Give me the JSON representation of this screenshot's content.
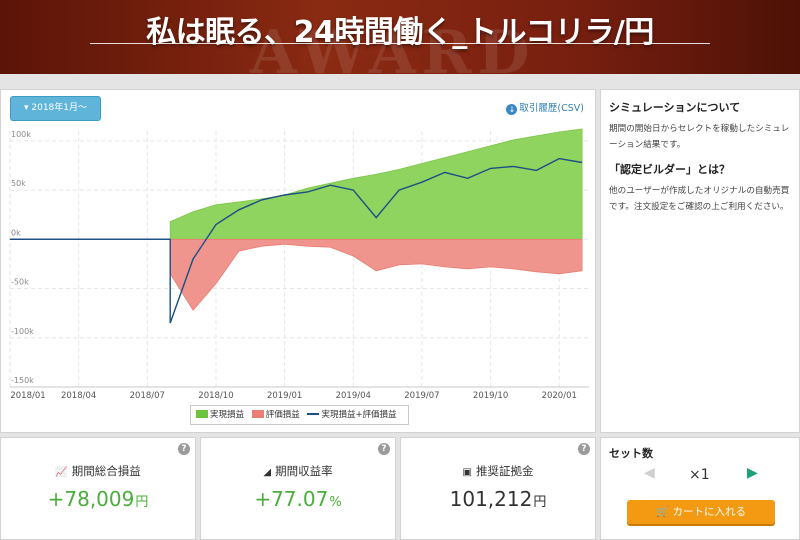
{
  "banner": {
    "title": "私は眠る、24時間働く_トルコリラ/円",
    "watermark": "AWARD"
  },
  "chart_panel": {
    "period_button": "2018年1月～",
    "csv_link": "取引履歴(CSV)",
    "legend": [
      "実現損益",
      "評価損益",
      "実現損益+評価損益"
    ]
  },
  "chart_data": {
    "type": "area",
    "x": [
      "2018/01",
      "2018/04",
      "2018/07",
      "2018/10",
      "2019/01",
      "2019/04",
      "2019/07",
      "2019/10",
      "2020/01"
    ],
    "x_ticks": [
      "2018/01",
      "2018/04",
      "2018/07",
      "2018/10",
      "2019/01",
      "2019/04",
      "2019/07",
      "2019/10",
      "2020/01"
    ],
    "y_ticks": [
      "100k",
      "50k",
      "0k",
      "-50k",
      "-100k",
      "-150k"
    ],
    "ylim": [
      -150000,
      110000
    ],
    "grid": true,
    "legend_position": "bottom",
    "series": [
      {
        "name": "実現損益",
        "color": "#8fd45f",
        "points": [
          [
            "2018/01",
            0
          ],
          [
            "2018/08",
            0
          ],
          [
            "2018/08",
            18000
          ],
          [
            "2018/09",
            28000
          ],
          [
            "2018/10",
            35000
          ],
          [
            "2018/11",
            38000
          ],
          [
            "2018/12",
            41000
          ],
          [
            "2019/01",
            45000
          ],
          [
            "2019/02",
            52000
          ],
          [
            "2019/03",
            57000
          ],
          [
            "2019/04",
            62000
          ],
          [
            "2019/05",
            66000
          ],
          [
            "2019/06",
            71000
          ],
          [
            "2019/07",
            77000
          ],
          [
            "2019/08",
            83000
          ],
          [
            "2019/09",
            89000
          ],
          [
            "2019/10",
            95000
          ],
          [
            "2019/11",
            101000
          ],
          [
            "2019/12",
            105000
          ],
          [
            "2020/01",
            109000
          ],
          [
            "2020/02",
            112000
          ]
        ]
      },
      {
        "name": "評価損益",
        "color": "#f0958d",
        "points": [
          [
            "2018/01",
            0
          ],
          [
            "2018/08",
            0
          ],
          [
            "2018/08",
            -35000
          ],
          [
            "2018/09",
            -72000
          ],
          [
            "2018/10",
            -45000
          ],
          [
            "2018/11",
            -12000
          ],
          [
            "2018/12",
            -7000
          ],
          [
            "2019/01",
            -5000
          ],
          [
            "2019/02",
            -7000
          ],
          [
            "2019/03",
            -8000
          ],
          [
            "2019/04",
            -17000
          ],
          [
            "2019/05",
            -32000
          ],
          [
            "2019/06",
            -26000
          ],
          [
            "2019/07",
            -25000
          ],
          [
            "2019/08",
            -28000
          ],
          [
            "2019/09",
            -30000
          ],
          [
            "2019/10",
            -28000
          ],
          [
            "2019/11",
            -30000
          ],
          [
            "2019/12",
            -33000
          ],
          [
            "2020/01",
            -35000
          ],
          [
            "2020/02",
            -32000
          ]
        ]
      },
      {
        "name": "実現損益+評価損益",
        "color": "#1c4f86",
        "points": [
          [
            "2018/01",
            0
          ],
          [
            "2018/08",
            0
          ],
          [
            "2018/08",
            -85000
          ],
          [
            "2018/09",
            -20000
          ],
          [
            "2018/10",
            15000
          ],
          [
            "2018/11",
            30000
          ],
          [
            "2018/12",
            40000
          ],
          [
            "2019/01",
            45000
          ],
          [
            "2019/02",
            48000
          ],
          [
            "2019/03",
            55000
          ],
          [
            "2019/04",
            50000
          ],
          [
            "2019/05",
            22000
          ],
          [
            "2019/06",
            50000
          ],
          [
            "2019/07",
            58000
          ],
          [
            "2019/08",
            68000
          ],
          [
            "2019/09",
            62000
          ],
          [
            "2019/10",
            72000
          ],
          [
            "2019/11",
            74000
          ],
          [
            "2019/12",
            70000
          ],
          [
            "2020/01",
            82000
          ],
          [
            "2020/02",
            78000
          ]
        ]
      }
    ]
  },
  "info_panel": {
    "heading1": "シミュレーションについて",
    "text1": "期間の開始日からセレクトを稼動したシミュレーション結果です。",
    "heading2": "「認定ビルダー」とは？",
    "text2": "他のユーザーが作成したオリジナルの自動売買です。注文設定をご確認の上ご利用ください。"
  },
  "stats": {
    "help_glyph": "?",
    "total_profit": {
      "label": "期間総合損益",
      "value": "+78,009",
      "unit": "円",
      "icon": "line-chart-icon"
    },
    "return_rate": {
      "label": "期間収益率",
      "value": "+77.07",
      "unit": "%",
      "icon": "area-chart-icon"
    },
    "margin": {
      "label": "推奨証拠金",
      "value": "101,212",
      "unit": "円",
      "icon": "money-icon"
    }
  },
  "set_panel": {
    "title": "セット数",
    "quantity": "×1",
    "cart_button": "カートに入れる"
  },
  "colors": {
    "accent": "#5fb5d9",
    "profit_green": "#4aae3a",
    "cart_orange": "#f39a12",
    "banner_red": "#7a2010"
  }
}
